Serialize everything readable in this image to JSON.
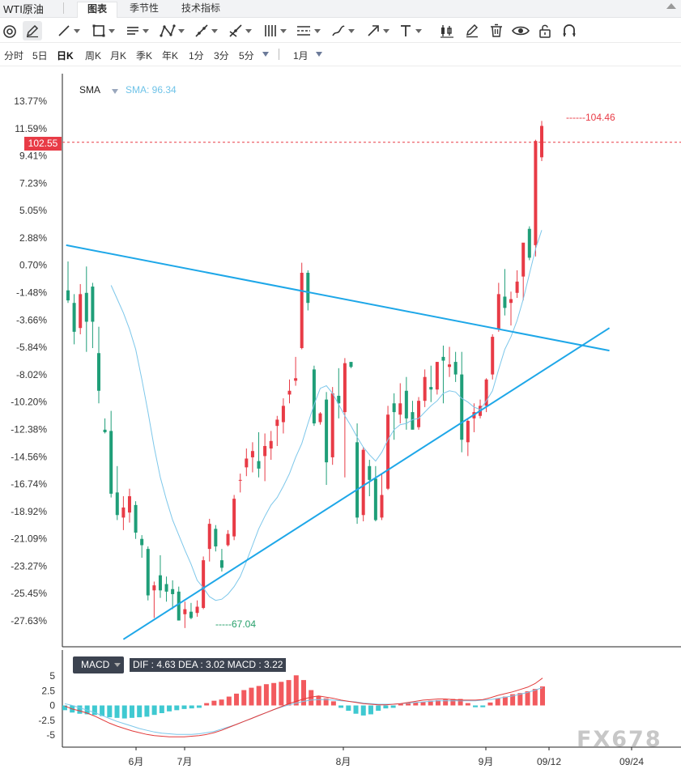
{
  "app": {
    "title": "WTI原油",
    "tabs": [
      {
        "label": "图表",
        "active": true
      },
      {
        "label": "季节性",
        "active": false
      },
      {
        "label": "技术指标",
        "active": false
      }
    ]
  },
  "toolbar": {
    "icons": [
      "magnet-icon",
      "pen-icon",
      "line-icon",
      "rectangle-icon",
      "horizontal-lines-icon",
      "pattern-icon",
      "ray-icon",
      "cross-lines-icon",
      "vertical-lines-icon",
      "fib-levels-icon",
      "brush-icon",
      "arrow-icon",
      "text-icon",
      "candlestick-icon",
      "edit-icon",
      "trash-icon",
      "eye-icon",
      "unlock-icon",
      "magnet-u-icon"
    ]
  },
  "periods": {
    "items": [
      {
        "label": "分时",
        "active": false
      },
      {
        "label": "5日",
        "active": false
      },
      {
        "label": "日K",
        "active": true
      },
      {
        "label": "周K",
        "active": false
      },
      {
        "label": "月K",
        "active": false
      },
      {
        "label": "季K",
        "active": false
      },
      {
        "label": "年K",
        "active": false
      },
      {
        "label": "1分",
        "active": false
      },
      {
        "label": "3分",
        "active": false
      },
      {
        "label": "5分",
        "active": false
      }
    ],
    "range_label": "1月"
  },
  "indicator": {
    "sma_label": "SMA",
    "sma_value": "SMA: 96.34"
  },
  "price_tags": {
    "last_price": "102.55",
    "high": "104.46",
    "low": "67.04"
  },
  "macd": {
    "name": "MACD",
    "values": "DIF : 4.63   DEA : 3.02   MACD : 3.22",
    "y_ticks": [
      "5",
      "2.5",
      "0",
      "-2.5",
      "-5"
    ]
  },
  "watermark": "FX678",
  "colors": {
    "up": "#e83b46",
    "down": "#1f9e78",
    "sma": "#7dc7ea",
    "trendline": "#1ea7e8",
    "macd_hist_pos": "#f25a5e",
    "macd_hist_neg": "#3fc9d1",
    "dif": "#e23b3b",
    "dea": "#7dc7ea"
  },
  "chart_data": {
    "type": "candlestick",
    "ylabel_ticks": [
      "13.77%",
      "11.59%",
      "9.41%",
      "7.23%",
      "5.05%",
      "2.88%",
      "0.70%",
      "-1.48%",
      "-3.66%",
      "-5.84%",
      "-8.02%",
      "-10.20%",
      "-12.38%",
      "-14.56%",
      "-16.74%",
      "-18.92%",
      "-21.09%",
      "-23.27%",
      "-25.45%",
      "-27.63%"
    ],
    "ylim_pct": [
      -29.0,
      15.5
    ],
    "x_ticks": [
      "6月",
      "7月",
      "8月",
      "9月",
      "09/12",
      "09/24"
    ],
    "last_price": 102.55,
    "period_high": 104.46,
    "period_low": 67.04,
    "candles_pct": [
      {
        "o": -1.3,
        "h": 1.0,
        "l": -2.3,
        "c": -2.1
      },
      {
        "o": -2.3,
        "h": -1.6,
        "l": -5.6,
        "c": -4.6
      },
      {
        "o": -4.3,
        "h": -0.8,
        "l": -4.8,
        "c": -1.6
      },
      {
        "o": -1.5,
        "h": 0.6,
        "l": -6.2,
        "c": -3.8
      },
      {
        "o": -1.0,
        "h": -0.7,
        "l": -5.9,
        "c": -3.8
      },
      {
        "o": -6.3,
        "h": -4.2,
        "l": -10.3,
        "c": -9.3
      },
      {
        "o": -12.4,
        "h": -11.5,
        "l": -12.7,
        "c": -12.6
      },
      {
        "o": -12.5,
        "h": -10.9,
        "l": -17.8,
        "c": -17.5
      },
      {
        "o": -17.4,
        "h": -15.3,
        "l": -19.6,
        "c": -19.2
      },
      {
        "o": -19.4,
        "h": -17.7,
        "l": -20.4,
        "c": -18.6
      },
      {
        "o": -19.0,
        "h": -17.1,
        "l": -19.8,
        "c": -17.7
      },
      {
        "o": -18.4,
        "h": -18.1,
        "l": -21.1,
        "c": -20.6
      },
      {
        "o": -21.1,
        "h": -20.8,
        "l": -22.6,
        "c": -21.6
      },
      {
        "o": -21.9,
        "h": -21.7,
        "l": -26.0,
        "c": -25.6
      },
      {
        "o": -25.2,
        "h": -24.5,
        "l": -27.4,
        "c": -24.8
      },
      {
        "o": -24.0,
        "h": -22.4,
        "l": -25.8,
        "c": -25.2
      },
      {
        "o": -24.7,
        "h": -24.1,
        "l": -26.1,
        "c": -25.3
      },
      {
        "o": -25.1,
        "h": -24.4,
        "l": -26.7,
        "c": -25.5
      },
      {
        "o": -25.3,
        "h": -24.9,
        "l": -27.6,
        "c": -27.6
      },
      {
        "o": -27.1,
        "h": -26.1,
        "l": -28.2,
        "c": -26.7
      },
      {
        "o": -26.9,
        "h": -26.2,
        "l": -27.5,
        "c": -27.4
      },
      {
        "o": -27.0,
        "h": -26.0,
        "l": -27.3,
        "c": -26.5
      },
      {
        "o": -26.6,
        "h": -22.5,
        "l": -26.7,
        "c": -22.8
      },
      {
        "o": -21.9,
        "h": -19.5,
        "l": -22.9,
        "c": -19.9
      },
      {
        "o": -20.3,
        "h": -20.0,
        "l": -22.1,
        "c": -21.7
      },
      {
        "o": -22.8,
        "h": -21.9,
        "l": -23.7,
        "c": -23.4
      },
      {
        "o": -21.6,
        "h": -20.4,
        "l": -21.7,
        "c": -20.7
      },
      {
        "o": -20.9,
        "h": -17.6,
        "l": -21.2,
        "c": -17.9
      },
      {
        "o": -16.4,
        "h": -15.9,
        "l": -17.4,
        "c": -16.4
      },
      {
        "o": -15.4,
        "h": -13.9,
        "l": -16.1,
        "c": -14.7
      },
      {
        "o": -14.6,
        "h": -13.4,
        "l": -15.8,
        "c": -14.1
      },
      {
        "o": -14.9,
        "h": -12.6,
        "l": -16.2,
        "c": -15.5
      },
      {
        "o": -14.5,
        "h": -12.7,
        "l": -16.5,
        "c": -13.7
      },
      {
        "o": -13.9,
        "h": -12.5,
        "l": -14.8,
        "c": -13.3
      },
      {
        "o": -12.1,
        "h": -11.3,
        "l": -13.7,
        "c": -11.6
      },
      {
        "o": -11.8,
        "h": -9.9,
        "l": -12.7,
        "c": -10.5
      },
      {
        "o": -9.6,
        "h": -8.4,
        "l": -10.3,
        "c": -9.3
      },
      {
        "o": -8.5,
        "h": -6.6,
        "l": -8.9,
        "c": -8.3
      },
      {
        "o": -5.9,
        "h": 0.9,
        "l": -6.0,
        "c": 0.1
      },
      {
        "o": 0.1,
        "h": 0.3,
        "l": -2.9,
        "c": -2.3
      },
      {
        "o": -7.6,
        "h": -7.3,
        "l": -12.1,
        "c": -11.9
      },
      {
        "o": -11.8,
        "h": -11.0,
        "l": -12.0,
        "c": -11.1
      },
      {
        "o": -10.0,
        "h": -9.4,
        "l": -16.8,
        "c": -15.0
      },
      {
        "o": -14.6,
        "h": -9.0,
        "l": -15.2,
        "c": -9.5
      },
      {
        "o": -9.7,
        "h": -7.5,
        "l": -11.5,
        "c": -10.3
      },
      {
        "o": -11.0,
        "h": -6.7,
        "l": -16.2,
        "c": -7.1
      },
      {
        "o": -7.0,
        "h": -7.1,
        "l": -7.5,
        "c": -7.4
      },
      {
        "o": -13.4,
        "h": -11.9,
        "l": -19.9,
        "c": -19.4
      },
      {
        "o": -19.2,
        "h": -13.8,
        "l": -19.7,
        "c": -14.0
      },
      {
        "o": -15.3,
        "h": -14.8,
        "l": -17.7,
        "c": -16.4
      },
      {
        "o": -16.3,
        "h": -15.3,
        "l": -19.7,
        "c": -19.6
      },
      {
        "o": -19.4,
        "h": -15.9,
        "l": -19.6,
        "c": -17.6
      },
      {
        "o": -17.1,
        "h": -10.5,
        "l": -17.2,
        "c": -11.2
      },
      {
        "o": -10.3,
        "h": -9.5,
        "l": -13.2,
        "c": -11.0
      },
      {
        "o": -11.2,
        "h": -8.7,
        "l": -11.9,
        "c": -10.3
      },
      {
        "o": -9.3,
        "h": -8.2,
        "l": -12.4,
        "c": -11.5
      },
      {
        "o": -11.0,
        "h": -10.1,
        "l": -12.1,
        "c": -12.4
      },
      {
        "o": -12.2,
        "h": -9.8,
        "l": -12.4,
        "c": -10.1
      },
      {
        "o": -10.1,
        "h": -7.6,
        "l": -10.6,
        "c": -8.2
      },
      {
        "o": -9.0,
        "h": -7.3,
        "l": -10.2,
        "c": -9.2
      },
      {
        "o": -9.2,
        "h": -7.0,
        "l": -9.6,
        "c": -7.0
      },
      {
        "o": -6.6,
        "h": -5.7,
        "l": -10.3,
        "c": -6.9
      },
      {
        "o": -7.4,
        "h": -5.8,
        "l": -8.2,
        "c": -7.2
      },
      {
        "o": -7.0,
        "h": -6.2,
        "l": -8.6,
        "c": -8.0
      },
      {
        "o": -8.0,
        "h": -6.2,
        "l": -14.2,
        "c": -13.2
      },
      {
        "o": -13.4,
        "h": -11.6,
        "l": -14.5,
        "c": -11.7
      },
      {
        "o": -11.5,
        "h": -10.3,
        "l": -12.6,
        "c": -11.0
      },
      {
        "o": -11.3,
        "h": -10.0,
        "l": -11.5,
        "c": -10.5
      },
      {
        "o": -10.5,
        "h": -8.3,
        "l": -11.0,
        "c": -8.4
      },
      {
        "o": -8.0,
        "h": -4.8,
        "l": -8.4,
        "c": -5.0
      },
      {
        "o": -4.4,
        "h": -0.7,
        "l": -4.6,
        "c": -1.6
      },
      {
        "o": -1.8,
        "h": 0.4,
        "l": -3.3,
        "c": -2.7
      },
      {
        "o": -2.3,
        "h": -1.4,
        "l": -4.1,
        "c": -2.0
      },
      {
        "o": -1.5,
        "h": 0.3,
        "l": -1.9,
        "c": -0.6
      },
      {
        "o": -0.2,
        "h": 1.9,
        "l": -2.1,
        "c": 2.5
      },
      {
        "o": 3.6,
        "h": 3.8,
        "l": 1.1,
        "c": 1.3
      },
      {
        "o": 2.3,
        "h": 10.7,
        "l": 1.4,
        "c": 10.6
      },
      {
        "o": 9.3,
        "h": 12.2,
        "l": 9.0,
        "c": 11.8
      }
    ],
    "sma_pct": [
      -0.9,
      -2.0,
      -3.1,
      -4.4,
      -6.0,
      -8.4,
      -11.0,
      -13.8,
      -16.2,
      -18.0,
      -19.6,
      -20.8,
      -22.0,
      -23.1,
      -24.4,
      -25.0,
      -25.7,
      -26.0,
      -25.9,
      -25.5,
      -24.9,
      -24.1,
      -22.9,
      -21.6,
      -20.3,
      -19.3,
      -18.4,
      -17.8,
      -16.9,
      -15.9,
      -14.6,
      -13.5,
      -11.9,
      -10.4,
      -9.1,
      -8.9,
      -9.5,
      -10.4,
      -11.3,
      -12.1,
      -13.0,
      -13.8,
      -14.4,
      -14.9,
      -14.2,
      -13.2,
      -12.4,
      -12.0,
      -11.9,
      -11.6,
      -11.5,
      -11.0,
      -10.5,
      -10.1,
      -9.5,
      -9.3,
      -9.4,
      -9.9,
      -10.2,
      -10.6,
      -10.8,
      -10.1,
      -9.3,
      -7.6,
      -6.0,
      -5.0,
      -3.7,
      -2.0,
      0.0,
      2.0,
      3.5
    ],
    "macd_dif": [
      -0.1,
      -0.6,
      -0.9,
      -1.3,
      -1.8,
      -2.4,
      -3.0,
      -3.5,
      -3.9,
      -4.3,
      -4.6,
      -4.9,
      -5.1,
      -5.2,
      -5.3,
      -5.3,
      -5.3,
      -5.2,
      -5.1,
      -4.9,
      -4.6,
      -4.2,
      -3.7,
      -3.2,
      -2.7,
      -2.2,
      -1.7,
      -1.2,
      -0.7,
      -0.2,
      0.3,
      0.7,
      1.1,
      1.4,
      1.6,
      1.4,
      1.2,
      0.9,
      0.7,
      0.5,
      0.3,
      0.2,
      0.1,
      0.1,
      0.2,
      0.3,
      0.5,
      0.7,
      0.9,
      1.0,
      1.1,
      1.1,
      1.0,
      0.9,
      0.9,
      0.9,
      1.0,
      1.3,
      1.7,
      2.0,
      2.3,
      2.7,
      3.1,
      3.7,
      4.63
    ],
    "macd_dea": [
      0.3,
      0.0,
      -0.4,
      -0.8,
      -1.2,
      -1.7,
      -2.2,
      -2.7,
      -3.1,
      -3.5,
      -3.9,
      -4.2,
      -4.5,
      -4.7,
      -4.8,
      -4.9,
      -4.9,
      -4.9,
      -4.8,
      -4.6,
      -4.4,
      -4.0,
      -3.6,
      -3.2,
      -2.7,
      -2.2,
      -1.7,
      -1.2,
      -0.7,
      -0.3,
      0.1,
      0.4,
      0.7,
      0.9,
      1.0,
      1.0,
      0.9,
      0.8,
      0.7,
      0.6,
      0.4,
      0.3,
      0.2,
      0.2,
      0.2,
      0.3,
      0.4,
      0.5,
      0.6,
      0.7,
      0.8,
      0.8,
      0.8,
      0.8,
      0.8,
      0.8,
      0.9,
      1.0,
      1.2,
      1.4,
      1.6,
      1.9,
      2.2,
      2.6,
      3.02
    ],
    "macd_hist": [
      -0.8,
      -1.2,
      -1.4,
      -1.5,
      -1.6,
      -1.8,
      -2.0,
      -2.1,
      -2.2,
      -2.1,
      -2.0,
      -1.9,
      -1.6,
      -1.3,
      -1.0,
      -0.8,
      -0.6,
      -0.5,
      -0.4,
      0.4,
      0.8,
      1.0,
      1.5,
      2.0,
      2.6,
      3.0,
      3.3,
      3.6,
      3.8,
      4.0,
      4.3,
      5.1,
      4.3,
      2.6,
      1.6,
      1.2,
      0.7,
      -0.4,
      -0.9,
      -1.4,
      -1.7,
      -1.5,
      -0.9,
      -0.5,
      -0.4,
      0.3,
      0.4,
      0.5,
      0.6,
      0.8,
      0.9,
      1.0,
      1.1,
      1.1,
      0.4,
      -0.3,
      -0.3,
      0.5,
      1.2,
      1.5,
      1.9,
      2.1,
      2.4,
      2.8,
      3.22
    ]
  }
}
